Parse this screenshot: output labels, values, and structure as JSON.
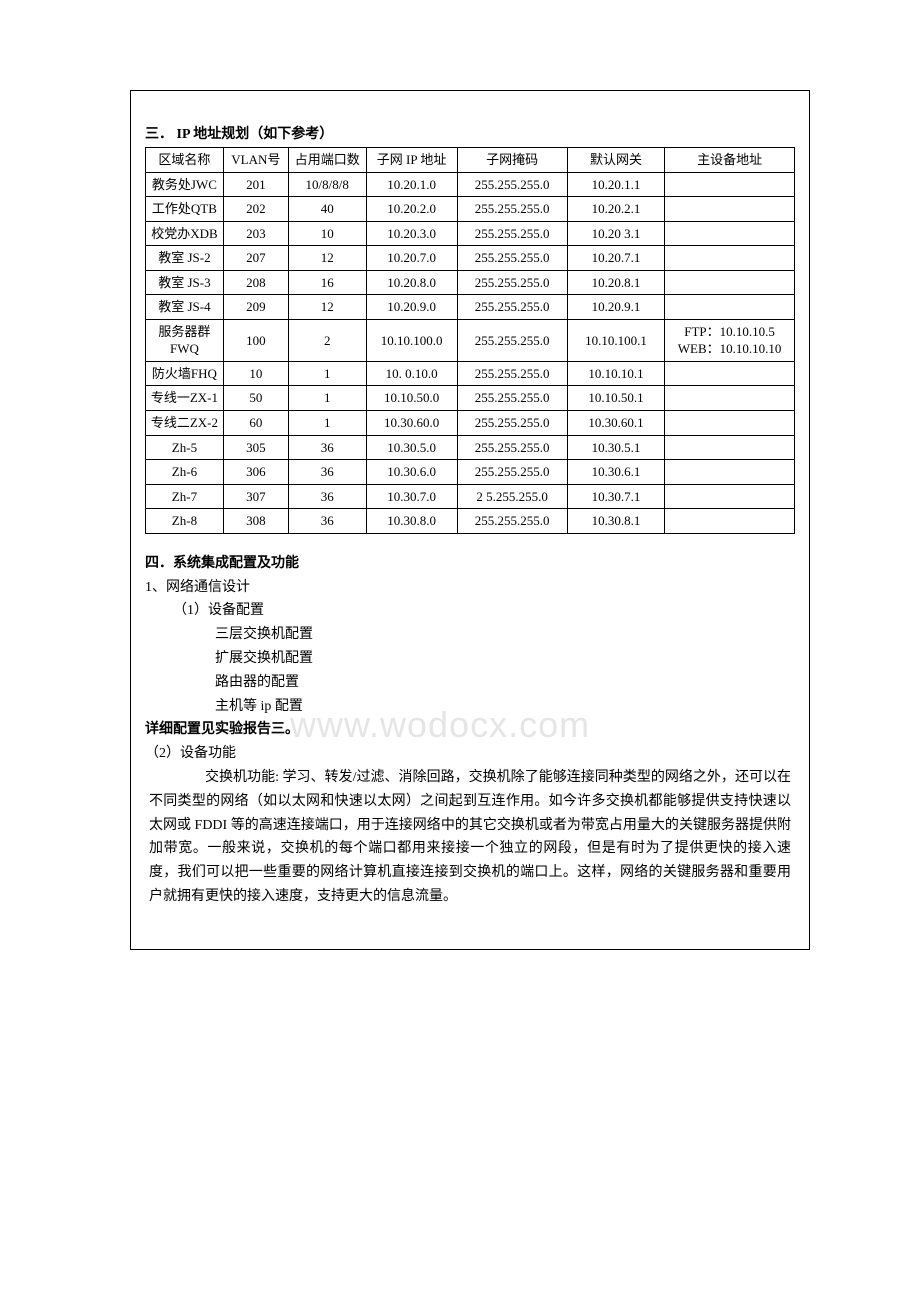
{
  "watermark": "www.wodocx.com",
  "section3": {
    "title": "三．  IP 地址规划（如下参考）",
    "columns": [
      "区域名称",
      "VLAN号",
      "占用端口数",
      "子网 IP 地址",
      "子网掩码",
      "默认网关",
      "主设备地址"
    ],
    "rows": [
      [
        "教务处JWC",
        "201",
        "10/8/8/8",
        "10.20.1.0",
        "255.255.255.0",
        "10.20.1.1",
        ""
      ],
      [
        "工作处QTB",
        "202",
        "40",
        "10.20.2.0",
        "255.255.255.0",
        "10.20.2.1",
        ""
      ],
      [
        "校党办XDB",
        "203",
        "10",
        "10.20.3.0",
        "255.255.255.0",
        "10.20   3.1",
        ""
      ],
      [
        "教室 JS-2",
        "207",
        "12",
        "10.20.7.0",
        "255.255.255.0",
        "10.20.7.1",
        ""
      ],
      [
        "教室 JS-3",
        "208",
        "16",
        "10.20.8.0",
        "255.255.255.0",
        "10.20.8.1",
        ""
      ],
      [
        "教室 JS-4",
        "209",
        "12",
        "10.20.9.0",
        "255.255.255.0",
        "10.20.9.1",
        ""
      ],
      [
        "服务器群FWQ",
        "100",
        "2",
        "10.10.100.0",
        "255.255.255.0",
        "10.10.100.1",
        "FTP：10.10.10.5 WEB：10.10.10.10"
      ],
      [
        "防火墙FHQ",
        "10",
        "1",
        "10.   0.10.0",
        "255.255.255.0",
        "10.10.10.1",
        ""
      ],
      [
        "专线一ZX-1",
        "50",
        "1",
        "10.10.50.0",
        "255.255.255.0",
        "10.10.50.1",
        ""
      ],
      [
        "专线二ZX-2",
        "60",
        "1",
        "10.30.60.0",
        "255.255.255.0",
        "10.30.60.1",
        ""
      ],
      [
        "Zh-5",
        "305",
        "36",
        "10.30.5.0",
        "255.255.255.0",
        "10.30.5.1",
        ""
      ],
      [
        "Zh-6",
        "306",
        "36",
        "10.30.6.0",
        "255.255.255.0",
        "10.30.6.1",
        ""
      ],
      [
        "Zh-7",
        "307",
        "36",
        "10.30.7.0",
        "2   5.255.255.0",
        "10.30.7.1",
        ""
      ],
      [
        "Zh-8",
        "308",
        "36",
        "10.30.8.0",
        "255.255.255.0",
        "10.30.8.1",
        ""
      ]
    ]
  },
  "section4": {
    "title": "四．系统集成配置及功能",
    "p1": "1、网络通信设计",
    "p1a": "（1）设备配置",
    "items": [
      "三层交换机配置",
      "扩展交换机配置",
      "路由器的配置",
      "主机等 ip 配置"
    ],
    "detail": "详细配置见实验报告三。",
    "p2": "（2）设备功能",
    "para": "交换机功能: 学习、转发/过滤、消除回路，交换机除了能够连接同种类型的网络之外，还可以在不同类型的网络（如以太网和快速以太网）之间起到互连作用。如今许多交换机都能够提供支持快速以太网或 FDDI 等的高速连接端口，用于连接网络中的其它交换机或者为带宽占用量大的关键服务器提供附加带宽。一般来说，交换机的每个端口都用来接接一个独立的网段，但是有时为了提供更快的接入速度，我们可以把一些重要的网络计算机直接连接到交换机的端口上。这样，网络的关键服务器和重要用户就拥有更快的接入速度，支持更大的信息流量。"
  }
}
